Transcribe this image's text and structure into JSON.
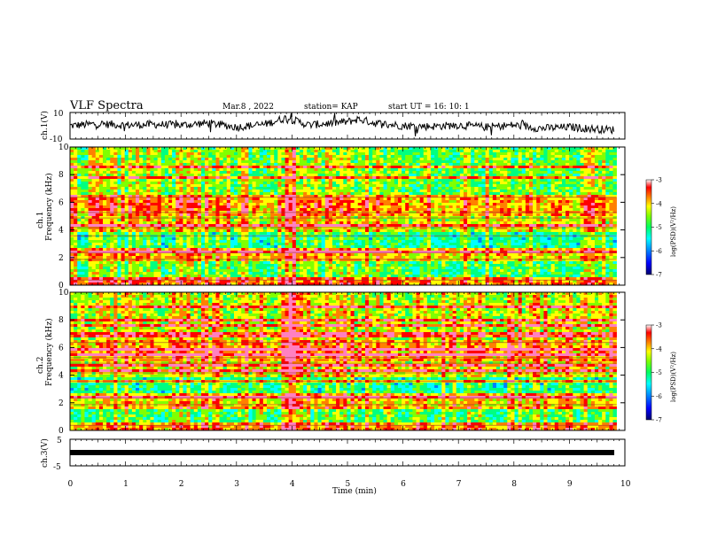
{
  "header": {
    "title": "VLF Spectra",
    "date": "Mar.8 , 2022",
    "station": "station= KAP",
    "start": "start  UT =   16: 10: 1"
  },
  "chart_data": [
    {
      "type": "line",
      "panel": "waveform-ch1",
      "ylabel": "ch.1(V)",
      "ylim": [
        -10,
        10
      ],
      "yticks": [
        10,
        -10
      ],
      "xlim": [
        0,
        10
      ],
      "series": [
        {
          "values_description_none": "",
          "x": [
            0,
            0.5,
            1,
            1.5,
            2,
            2.5,
            3,
            3.5,
            3.9,
            4.3,
            5,
            5.2,
            5.5,
            6,
            6.5,
            7,
            7.5,
            8,
            8.5,
            9,
            9.5,
            9.8
          ],
          "y": [
            0,
            1.5,
            0.5,
            1.0,
            0.5,
            2.0,
            -1.0,
            1.0,
            6.0,
            0.5,
            3.0,
            5.0,
            2.0,
            0.0,
            -0.5,
            0.5,
            -1.0,
            0.5,
            -2.0,
            -1.0,
            -2.5,
            -3.0
          ]
        }
      ]
    },
    {
      "type": "heatmap",
      "panel": "spectrogram-ch1",
      "ylabel": "ch.1\nFrequency  (kHz)",
      "ylim": [
        0,
        10
      ],
      "yticks": [
        0,
        2,
        4,
        6,
        8,
        10
      ],
      "xlim": [
        0,
        9.85
      ],
      "colorbar": {
        "label": "log(PSD)(V²/Hz)",
        "range": [
          -7,
          -3
        ],
        "ticks": [
          "-3",
          "-4",
          "-5",
          "-6",
          "-7"
        ]
      }
    },
    {
      "type": "heatmap",
      "panel": "spectrogram-ch2",
      "ylabel": "ch.2\nFrequency  (kHz)",
      "ylim": [
        0,
        10
      ],
      "yticks": [
        0,
        2,
        4,
        6,
        8,
        10
      ],
      "xlim": [
        0,
        9.85
      ],
      "colorbar": {
        "label": "log(PSD)(V²/Hz)",
        "range": [
          -7,
          -3
        ],
        "ticks": [
          "-3",
          "-4",
          "-5",
          "-6",
          "-7"
        ]
      }
    },
    {
      "type": "line",
      "panel": "waveform-ch3",
      "ylabel": "ch.3(V)",
      "ylim": [
        -5,
        5
      ],
      "yticks": [
        5,
        0,
        -5
      ],
      "xlim": [
        0,
        10
      ],
      "series": [
        {
          "x": [
            0,
            9.85
          ],
          "y": [
            0,
            0
          ]
        }
      ]
    }
  ],
  "xaxis": {
    "label": "Time  (min)",
    "ticks": [
      "0",
      "1",
      "2",
      "3",
      "4",
      "5",
      "6",
      "7",
      "8",
      "9",
      "10"
    ],
    "range": [
      0,
      10
    ]
  },
  "colormap": [
    "#00006e",
    "#0000ff",
    "#0080ff",
    "#00ffff",
    "#00ff80",
    "#80ff00",
    "#ffff00",
    "#ff8000",
    "#ff0000",
    "#ff80c0"
  ]
}
